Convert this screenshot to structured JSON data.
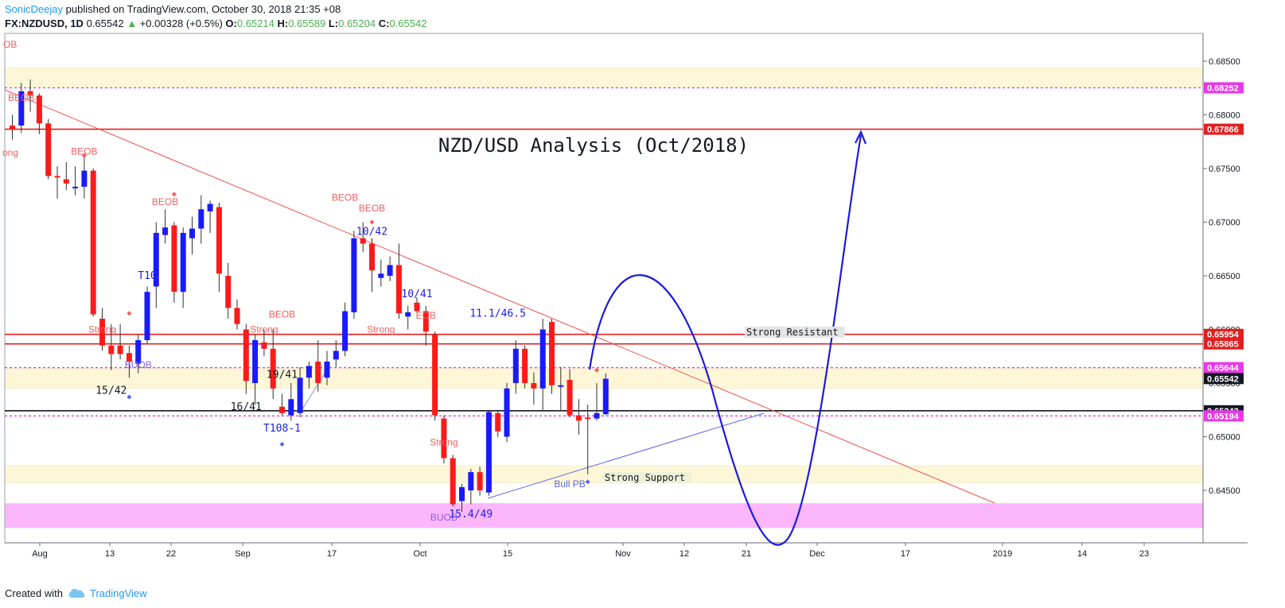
{
  "header": {
    "user": "SonicDeejay",
    "published": "published on TradingView.com, October 30, 2018 21:35 +08",
    "symbol": "FX:NZDUSD, 1D",
    "last": "0.65542",
    "change_arrow": "▲",
    "change": "+0.00328 (+0.5%)",
    "o_label": "O:",
    "o": "0.65214",
    "h_label": "H:",
    "h": "0.65589",
    "l_label": "L:",
    "l": "0.65204",
    "c_label": "C:",
    "c": "0.65542"
  },
  "footer": {
    "created": "Created with",
    "brand": "TradingView"
  },
  "colors": {
    "bull": "#1a1aff",
    "bear": "#ff1a1a",
    "red_line": "#e02020",
    "magenta": "#e838e8",
    "zone_yellow": "#fdf7d8",
    "zone_pink": "#fcb6fc",
    "label_red": "#f06060",
    "label_blue": "#2020e0"
  },
  "chart_data": {
    "type": "candlestick",
    "title": "NZD/USD Analysis (Oct/2018)",
    "y_axis": {
      "ticks": [
        "0.68500",
        "0.68000",
        "0.67500",
        "0.67000",
        "0.66500",
        "0.66000",
        "0.65500",
        "0.65000",
        "0.64500"
      ],
      "tick_values": [
        0.685,
        0.68,
        0.675,
        0.67,
        0.665,
        0.66,
        0.655,
        0.65,
        0.645
      ],
      "range": [
        0.6415,
        0.6877
      ]
    },
    "x_axis": {
      "ticks": [
        "Aug",
        "13",
        "22",
        "Sep",
        "17",
        "Oct",
        "15",
        "Nov",
        "12",
        "21",
        "Dec",
        "17",
        "2019",
        "14",
        "23"
      ]
    },
    "price_tags": [
      {
        "value": "0.68252",
        "color": "#e838e8",
        "text_color": "#ffffff"
      },
      {
        "value": "0.67866",
        "color": "#e02020",
        "text_color": "#ffffff"
      },
      {
        "value": "0.65954",
        "color": "#e02020",
        "text_color": "#ffffff"
      },
      {
        "value": "0.65865",
        "color": "#e02020",
        "text_color": "#ffffff"
      },
      {
        "value": "0.65644",
        "color": "#e838e8",
        "text_color": "#ffffff"
      },
      {
        "value": "0.65542",
        "color": "#131722",
        "text_color": "#ffffff"
      },
      {
        "value": "0.65242",
        "color": "#131722",
        "text_color": "#ffffff"
      },
      {
        "value": "0.65194",
        "color": "#e838e8",
        "text_color": "#ffffff"
      }
    ],
    "horizontal_lines": [
      {
        "y": 0.68252,
        "style": "dashed",
        "color": "#e838e8"
      },
      {
        "y": 0.67866,
        "style": "solid",
        "color": "#e02020"
      },
      {
        "y": 0.65954,
        "style": "solid",
        "color": "#e02020"
      },
      {
        "y": 0.65865,
        "style": "solid",
        "color": "#e02020"
      },
      {
        "y": 0.65644,
        "style": "dashed",
        "color": "#e838e8"
      },
      {
        "y": 0.65242,
        "style": "solid",
        "color": "#131722"
      },
      {
        "y": 0.65194,
        "style": "dashed",
        "color": "#e838e8"
      }
    ],
    "zones": [
      {
        "from": 0.6826,
        "to": 0.6844,
        "color": "#fdf7d8"
      },
      {
        "from": 0.6545,
        "to": 0.6564,
        "color": "#fdf7d8"
      },
      {
        "from": 0.6457,
        "to": 0.6473,
        "color": "#fdf7d8"
      },
      {
        "from": 0.6415,
        "to": 0.6438,
        "color": "#fcb6fc"
      }
    ],
    "candles": [
      {
        "o": 0.679,
        "h": 0.68,
        "l": 0.6777,
        "c": 0.6786
      },
      {
        "o": 0.679,
        "h": 0.683,
        "l": 0.6783,
        "c": 0.6822
      },
      {
        "o": 0.6822,
        "h": 0.6833,
        "l": 0.6803,
        "c": 0.6818
      },
      {
        "o": 0.6818,
        "h": 0.682,
        "l": 0.6782,
        "c": 0.6792
      },
      {
        "o": 0.6792,
        "h": 0.6796,
        "l": 0.674,
        "c": 0.6743
      },
      {
        "o": 0.6743,
        "h": 0.6752,
        "l": 0.6722,
        "c": 0.6742
      },
      {
        "o": 0.674,
        "h": 0.6756,
        "l": 0.673,
        "c": 0.6736
      },
      {
        "o": 0.6732,
        "h": 0.6752,
        "l": 0.6725,
        "c": 0.6733
      },
      {
        "o": 0.6733,
        "h": 0.6763,
        "l": 0.6722,
        "c": 0.6748
      },
      {
        "o": 0.6748,
        "h": 0.675,
        "l": 0.6612,
        "c": 0.6614
      },
      {
        "o": 0.661,
        "h": 0.662,
        "l": 0.658,
        "c": 0.6585
      },
      {
        "o": 0.6585,
        "h": 0.6605,
        "l": 0.6562,
        "c": 0.6577
      },
      {
        "o": 0.6585,
        "h": 0.6605,
        "l": 0.6572,
        "c": 0.6577
      },
      {
        "o": 0.6578,
        "h": 0.6585,
        "l": 0.6555,
        "c": 0.657
      },
      {
        "o": 0.6568,
        "h": 0.6595,
        "l": 0.6559,
        "c": 0.659
      },
      {
        "o": 0.659,
        "h": 0.664,
        "l": 0.6586,
        "c": 0.6635
      },
      {
        "o": 0.664,
        "h": 0.67,
        "l": 0.662,
        "c": 0.669
      },
      {
        "o": 0.6688,
        "h": 0.6712,
        "l": 0.668,
        "c": 0.6695
      },
      {
        "o": 0.6697,
        "h": 0.67,
        "l": 0.6625,
        "c": 0.6635
      },
      {
        "o": 0.6635,
        "h": 0.6695,
        "l": 0.662,
        "c": 0.669
      },
      {
        "o": 0.6685,
        "h": 0.6705,
        "l": 0.667,
        "c": 0.6694
      },
      {
        "o": 0.6694,
        "h": 0.6725,
        "l": 0.668,
        "c": 0.6712
      },
      {
        "o": 0.671,
        "h": 0.672,
        "l": 0.669,
        "c": 0.6717
      },
      {
        "o": 0.6714,
        "h": 0.6718,
        "l": 0.6635,
        "c": 0.6652
      },
      {
        "o": 0.665,
        "h": 0.6662,
        "l": 0.661,
        "c": 0.662
      },
      {
        "o": 0.662,
        "h": 0.6628,
        "l": 0.66,
        "c": 0.6605
      },
      {
        "o": 0.66,
        "h": 0.6605,
        "l": 0.654,
        "c": 0.6552
      },
      {
        "o": 0.655,
        "h": 0.6595,
        "l": 0.653,
        "c": 0.659
      },
      {
        "o": 0.6588,
        "h": 0.66,
        "l": 0.6575,
        "c": 0.6582
      },
      {
        "o": 0.6582,
        "h": 0.66,
        "l": 0.6535,
        "c": 0.6545
      },
      {
        "o": 0.6528,
        "h": 0.654,
        "l": 0.652,
        "c": 0.6522
      },
      {
        "o": 0.652,
        "h": 0.655,
        "l": 0.6515,
        "c": 0.6535
      },
      {
        "o": 0.6522,
        "h": 0.6565,
        "l": 0.6518,
        "c": 0.6555
      },
      {
        "o": 0.6555,
        "h": 0.657,
        "l": 0.6545,
        "c": 0.6566
      },
      {
        "o": 0.657,
        "h": 0.659,
        "l": 0.6542,
        "c": 0.655
      },
      {
        "o": 0.6555,
        "h": 0.658,
        "l": 0.6548,
        "c": 0.657
      },
      {
        "o": 0.6572,
        "h": 0.659,
        "l": 0.6565,
        "c": 0.658
      },
      {
        "o": 0.658,
        "h": 0.6625,
        "l": 0.6575,
        "c": 0.6617
      },
      {
        "o": 0.6616,
        "h": 0.6692,
        "l": 0.661,
        "c": 0.6685
      },
      {
        "o": 0.6685,
        "h": 0.67,
        "l": 0.6672,
        "c": 0.668
      },
      {
        "o": 0.668,
        "h": 0.6685,
        "l": 0.6635,
        "c": 0.6655
      },
      {
        "o": 0.6648,
        "h": 0.6665,
        "l": 0.664,
        "c": 0.6652
      },
      {
        "o": 0.665,
        "h": 0.6668,
        "l": 0.6645,
        "c": 0.666
      },
      {
        "o": 0.666,
        "h": 0.668,
        "l": 0.661,
        "c": 0.6615
      },
      {
        "o": 0.6612,
        "h": 0.6622,
        "l": 0.66,
        "c": 0.6616
      },
      {
        "o": 0.6625,
        "h": 0.663,
        "l": 0.6615,
        "c": 0.6617
      },
      {
        "o": 0.6617,
        "h": 0.6622,
        "l": 0.6585,
        "c": 0.6598
      },
      {
        "o": 0.6595,
        "h": 0.6598,
        "l": 0.6515,
        "c": 0.652
      },
      {
        "o": 0.6517,
        "h": 0.652,
        "l": 0.6475,
        "c": 0.648
      },
      {
        "o": 0.648,
        "h": 0.6483,
        "l": 0.6435,
        "c": 0.6437
      },
      {
        "o": 0.644,
        "h": 0.6456,
        "l": 0.643,
        "c": 0.6453
      },
      {
        "o": 0.645,
        "h": 0.647,
        "l": 0.6437,
        "c": 0.6467
      },
      {
        "o": 0.6467,
        "h": 0.6472,
        "l": 0.6445,
        "c": 0.645
      },
      {
        "o": 0.6448,
        "h": 0.6525,
        "l": 0.6445,
        "c": 0.6523
      },
      {
        "o": 0.6522,
        "h": 0.6525,
        "l": 0.65,
        "c": 0.6505
      },
      {
        "o": 0.65,
        "h": 0.655,
        "l": 0.6495,
        "c": 0.6545
      },
      {
        "o": 0.655,
        "h": 0.659,
        "l": 0.654,
        "c": 0.6582
      },
      {
        "o": 0.6582,
        "h": 0.6585,
        "l": 0.6545,
        "c": 0.655
      },
      {
        "o": 0.655,
        "h": 0.656,
        "l": 0.653,
        "c": 0.6545
      },
      {
        "o": 0.6545,
        "h": 0.661,
        "l": 0.6525,
        "c": 0.66
      },
      {
        "o": 0.6607,
        "h": 0.661,
        "l": 0.654,
        "c": 0.6548
      },
      {
        "o": 0.6548,
        "h": 0.6565,
        "l": 0.6525,
        "c": 0.6548
      },
      {
        "o": 0.6553,
        "h": 0.6563,
        "l": 0.6518,
        "c": 0.652
      },
      {
        "o": 0.652,
        "h": 0.6535,
        "l": 0.6502,
        "c": 0.6515
      },
      {
        "o": 0.6518,
        "h": 0.653,
        "l": 0.6465,
        "c": 0.6517
      },
      {
        "o": 0.6517,
        "h": 0.655,
        "l": 0.6515,
        "c": 0.6522
      },
      {
        "o": 0.6521,
        "h": 0.6559,
        "l": 0.652,
        "c": 0.6554
      }
    ],
    "annotations": [
      {
        "text": "BEOB",
        "color": "#f06060",
        "at": [
          1,
          0.6813
        ]
      },
      {
        "text": "BEOB",
        "color": "#f06060",
        "at": [
          8,
          0.6763
        ]
      },
      {
        "text": "BEOB",
        "color": "#f06060",
        "at": [
          17,
          0.6716
        ]
      },
      {
        "text": "Strong",
        "color": "#f06060",
        "at": [
          10,
          0.6597
        ]
      },
      {
        "text": "Strong",
        "color": "#f06060",
        "at": [
          28,
          0.6597
        ]
      },
      {
        "text": "BEOB",
        "color": "#f06060",
        "at": [
          30,
          0.6611
        ]
      },
      {
        "text": "BEOB",
        "color": "#f06060",
        "at": [
          37,
          0.672
        ]
      },
      {
        "text": "BEOB",
        "color": "#f06060",
        "at": [
          40,
          0.671
        ]
      },
      {
        "text": "Strong",
        "color": "#f06060",
        "at": [
          41,
          0.6597
        ]
      },
      {
        "text": "EOB",
        "color": "#f06060",
        "at": [
          46,
          0.661
        ]
      },
      {
        "text": "Strong",
        "color": "#f06060",
        "at": [
          48,
          0.6492
        ]
      },
      {
        "text": "BUOB",
        "color": "#8a60e8",
        "at": [
          14,
          0.6564
        ]
      },
      {
        "text": "BUOB",
        "color": "#8a60e8",
        "at": [
          48,
          0.6422
        ]
      },
      {
        "text": "Bull PB",
        "color": "#5566dd",
        "at": [
          62,
          0.6453
        ]
      },
      {
        "text": "T10",
        "color": "#2020e0",
        "at": [
          15,
          0.6647
        ]
      },
      {
        "text": "15/42",
        "color": "#131722",
        "at": [
          11,
          0.654
        ]
      },
      {
        "text": "16/41",
        "color": "#131722",
        "at": [
          26,
          0.6525
        ]
      },
      {
        "text": "19/41",
        "color": "#131722",
        "at": [
          30,
          0.6555
        ]
      },
      {
        "text": "T108-1",
        "color": "#2020e0",
        "at": [
          30,
          0.6505
        ]
      },
      {
        "text": "10/42",
        "color": "#2020e0",
        "at": [
          40,
          0.6688
        ]
      },
      {
        "text": "10/41",
        "color": "#2020e0",
        "at": [
          45,
          0.663
        ]
      },
      {
        "text": "11.1/46.5",
        "color": "#2020e0",
        "at": [
          54,
          0.6612
        ]
      },
      {
        "text": "15.4/49",
        "color": "#2020e0",
        "at": [
          51,
          0.6425
        ]
      }
    ],
    "box_labels": [
      {
        "text": "Strong Resistant",
        "y": 0.65975
      },
      {
        "text": "Strong Support",
        "y": 0.6462
      }
    ]
  }
}
